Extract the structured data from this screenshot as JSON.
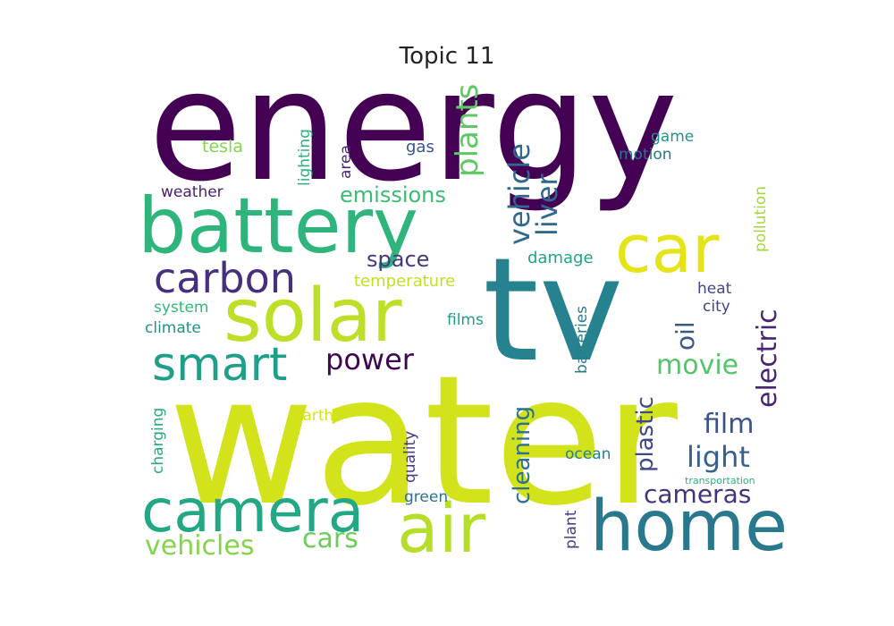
{
  "title": "Topic 11",
  "words": [
    {
      "text": "energy",
      "color": "#440154"
    },
    {
      "text": "water",
      "color": "#D2E21B"
    },
    {
      "text": "tv",
      "color": "#26828E"
    },
    {
      "text": "battery",
      "color": "#2FB47C"
    },
    {
      "text": "solar",
      "color": "#BDDF26"
    },
    {
      "text": "car",
      "color": "#E4E419"
    },
    {
      "text": "home",
      "color": "#2A788E"
    },
    {
      "text": "air",
      "color": "#B5DE2B"
    },
    {
      "text": "camera",
      "color": "#22A884"
    },
    {
      "text": "smart",
      "color": "#1F9E89"
    },
    {
      "text": "carbon",
      "color": "#472F7D"
    },
    {
      "text": "power",
      "color": "#3E0751"
    },
    {
      "text": "vehicle",
      "color": "#30688E"
    },
    {
      "text": "plants",
      "color": "#5EC962"
    },
    {
      "text": "liver",
      "color": "#31688E"
    },
    {
      "text": "emissions",
      "color": "#3BBB75"
    },
    {
      "text": "electric",
      "color": "#482475"
    },
    {
      "text": "oil",
      "color": "#38588C"
    },
    {
      "text": "movie",
      "color": "#52C569"
    },
    {
      "text": "film",
      "color": "#3B528B"
    },
    {
      "text": "light",
      "color": "#34618D"
    },
    {
      "text": "cameras",
      "color": "#46337E"
    },
    {
      "text": "cars",
      "color": "#6CCD5A"
    },
    {
      "text": "vehicles",
      "color": "#84D44B"
    },
    {
      "text": "cleaning",
      "color": "#2C728E"
    },
    {
      "text": "plastic",
      "color": "#3F4889"
    },
    {
      "text": "space",
      "color": "#453781"
    },
    {
      "text": "temperature",
      "color": "#C2DF23"
    },
    {
      "text": "damage",
      "color": "#20A386"
    },
    {
      "text": "heat",
      "color": "#3F4788"
    },
    {
      "text": "city",
      "color": "#414487"
    },
    {
      "text": "system",
      "color": "#35B779"
    },
    {
      "text": "climate",
      "color": "#21908D"
    },
    {
      "text": "weather",
      "color": "#481F70"
    },
    {
      "text": "tesla",
      "color": "#84D44B"
    },
    {
      "text": "lighting",
      "color": "#2DB27D"
    },
    {
      "text": "area",
      "color": "#482677"
    },
    {
      "text": "gas",
      "color": "#3A548C"
    },
    {
      "text": "game",
      "color": "#20928C"
    },
    {
      "text": "motion",
      "color": "#2B748E"
    },
    {
      "text": "pollution",
      "color": "#A0DA39"
    },
    {
      "text": "films",
      "color": "#1E9C89"
    },
    {
      "text": "batteries",
      "color": "#287D8E"
    },
    {
      "text": "earth",
      "color": "#D8E219"
    },
    {
      "text": "charging",
      "color": "#25AB82"
    },
    {
      "text": "quality",
      "color": "#443A83"
    },
    {
      "text": "green",
      "color": "#2D708E"
    },
    {
      "text": "ocean",
      "color": "#277F8E"
    },
    {
      "text": "plant",
      "color": "#424086"
    },
    {
      "text": "transportation",
      "color": "#2EB37C"
    }
  ]
}
